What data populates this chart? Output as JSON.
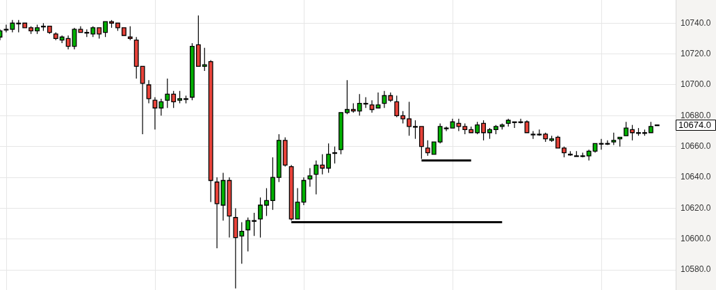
{
  "chart_data": {
    "type": "candlestick",
    "categories": [
      null,
      null,
      null,
      null,
      null,
      null,
      null,
      null,
      null,
      null,
      null,
      null,
      null,
      null,
      null,
      null,
      null,
      null,
      null,
      null,
      null,
      null,
      null,
      null,
      null,
      null,
      null,
      null,
      null,
      null,
      null,
      null,
      null,
      null,
      null,
      null,
      null,
      null,
      null,
      null,
      null,
      null,
      null,
      null,
      null,
      null,
      null,
      null,
      null,
      null,
      null,
      null,
      null,
      null,
      null,
      null,
      null,
      null,
      null,
      null,
      null,
      null,
      null,
      null,
      null,
      null,
      null,
      null,
      null,
      null,
      null,
      null,
      null,
      null,
      null,
      null,
      null,
      null,
      null,
      null,
      null,
      null,
      null,
      null,
      null,
      null,
      null,
      null,
      null,
      null,
      null,
      null,
      null,
      null,
      null,
      null,
      null,
      null,
      null,
      null,
      null,
      null,
      null,
      null,
      null,
      null,
      null
    ],
    "ohlc": [
      [
        10731,
        10736,
        10729,
        10735
      ],
      [
        10736,
        10739,
        10734,
        10736
      ],
      [
        10736,
        10742,
        10734,
        10740
      ],
      [
        10740,
        10742,
        10734,
        10740
      ],
      [
        10740,
        10740,
        10737,
        10737
      ],
      [
        10737,
        10738,
        10733,
        10735
      ],
      [
        10735,
        10739,
        10733,
        10737
      ],
      [
        10738,
        10740,
        10735,
        10738
      ],
      [
        10738,
        10738,
        10733,
        10734
      ],
      [
        10733,
        10734,
        10729,
        10730
      ],
      [
        10729,
        10732,
        10727,
        10731
      ],
      [
        10730,
        10732,
        10723,
        10725
      ],
      [
        10725,
        10737,
        10723,
        10736
      ],
      [
        10736,
        10738,
        10734,
        10734
      ],
      [
        10734,
        10736,
        10731,
        10734
      ],
      [
        10733,
        10738,
        10731,
        10737
      ],
      [
        10737,
        10737,
        10730,
        10733
      ],
      [
        10734,
        10741,
        10731,
        10741
      ],
      [
        10741,
        10742,
        10737,
        10740
      ],
      [
        10740,
        10740,
        10735,
        10737
      ],
      [
        10737,
        10737,
        10732,
        10732
      ],
      [
        10731,
        10738,
        10729,
        10730
      ],
      [
        10729,
        10731,
        10704,
        10712
      ],
      [
        10712,
        10712,
        10668,
        10701
      ],
      [
        10700,
        10703,
        10688,
        10691
      ],
      [
        10690,
        10692,
        10671,
        10685
      ],
      [
        10685,
        10691,
        10680,
        10689
      ],
      [
        10690,
        10704,
        10685,
        10694
      ],
      [
        10694,
        10696,
        10685,
        10689
      ],
      [
        10690,
        10696,
        10688,
        10691
      ],
      [
        10691,
        10693,
        10688,
        10691
      ],
      [
        10692,
        10727,
        10690,
        10725
      ],
      [
        10726,
        10745,
        10712,
        10712
      ],
      [
        10712,
        10724,
        10709,
        10713
      ],
      [
        10715,
        10716,
        10624,
        10638
      ],
      [
        10637,
        10640,
        10594,
        10623
      ],
      [
        10622,
        10643,
        10612,
        10638
      ],
      [
        10638,
        10640,
        10601,
        10615
      ],
      [
        10614,
        10620,
        10568,
        10601
      ],
      [
        10602,
        10611,
        10584,
        10605
      ],
      [
        10606,
        10614,
        10592,
        10612
      ],
      [
        10612,
        10617,
        10602,
        10612
      ],
      [
        10613,
        10627,
        10601,
        10622
      ],
      [
        10622,
        10633,
        10615,
        10625
      ],
      [
        10625,
        10653,
        10619,
        10640
      ],
      [
        10640,
        10668,
        10637,
        10664
      ],
      [
        10664,
        10666,
        10647,
        10648
      ],
      [
        10647,
        10648,
        10612,
        10613
      ],
      [
        10613,
        10633,
        10613,
        10624
      ],
      [
        10624,
        10640,
        10622,
        10638
      ],
      [
        10639,
        10646,
        10634,
        10641
      ],
      [
        10642,
        10651,
        10629,
        10648
      ],
      [
        10648,
        10655,
        10642,
        10646
      ],
      [
        10646,
        10662,
        10643,
        10655
      ],
      [
        10656,
        10660,
        10649,
        10656
      ],
      [
        10658,
        10682,
        10655,
        10682
      ],
      [
        10682,
        10703,
        10681,
        10684
      ],
      [
        10684,
        10688,
        10682,
        10683
      ],
      [
        10683,
        10694,
        10680,
        10688
      ],
      [
        10688,
        10692,
        10685,
        10688
      ],
      [
        10687,
        10690,
        10682,
        10684
      ],
      [
        10685,
        10695,
        10685,
        10687
      ],
      [
        10688,
        10696,
        10685,
        10693
      ],
      [
        10693,
        10695,
        10689,
        10690
      ],
      [
        10689,
        10693,
        10679,
        10680
      ],
      [
        10680,
        10683,
        10675,
        10678
      ],
      [
        10678,
        10689,
        10667,
        10673
      ],
      [
        10673,
        10677,
        10665,
        10673
      ],
      [
        10673,
        10673,
        10652,
        10660
      ],
      [
        10659,
        10664,
        10654,
        10656
      ],
      [
        10655,
        10663,
        10655,
        10663
      ],
      [
        10663,
        10675,
        10662,
        10673
      ],
      [
        10672,
        10673,
        10670,
        10672
      ],
      [
        10672,
        10678,
        10672,
        10676
      ],
      [
        10675,
        10678,
        10670,
        10673
      ],
      [
        10673,
        10675,
        10668,
        10671
      ],
      [
        10671,
        10673,
        10669,
        10669
      ],
      [
        10669,
        10676,
        10668,
        10674
      ],
      [
        10675,
        10677,
        10664,
        10669
      ],
      [
        10669,
        10672,
        10665,
        10671
      ],
      [
        10671,
        10674,
        10668,
        10673
      ],
      [
        10673,
        10675,
        10671,
        10674
      ],
      [
        10675,
        10678,
        10673,
        10677
      ],
      [
        10676,
        10676,
        10672,
        10676
      ],
      [
        10676,
        10678,
        10675,
        10676
      ],
      [
        10676,
        10677,
        10669,
        10669
      ],
      [
        10668,
        10670,
        10665,
        10668
      ],
      [
        10668,
        10671,
        10667,
        10668
      ],
      [
        10668,
        10669,
        10663,
        10665
      ],
      [
        10664,
        10667,
        10663,
        10665
      ],
      [
        10666,
        10667,
        10659,
        10659
      ],
      [
        10659,
        10660,
        10653,
        10656
      ],
      [
        10655,
        10657,
        10654,
        10655
      ],
      [
        10654,
        10657,
        10654,
        10654
      ],
      [
        10654,
        10656,
        10653,
        10654
      ],
      [
        10654,
        10658,
        10651,
        10657
      ],
      [
        10657,
        10662,
        10656,
        10662
      ],
      [
        10662,
        10665,
        10658,
        10662
      ],
      [
        10662,
        10664,
        10661,
        10662
      ],
      [
        10663,
        10669,
        10661,
        10664
      ],
      [
        10665,
        10666,
        10660,
        10666
      ],
      [
        10667,
        10676,
        10667,
        10672
      ],
      [
        10671,
        10674,
        10664,
        10669
      ],
      [
        10669,
        10672,
        10667,
        10669
      ],
      [
        10669,
        10671,
        10667,
        10669
      ],
      [
        10669,
        10676,
        10669,
        10673
      ],
      [
        10674,
        10674,
        10674,
        10674
      ]
    ],
    "colors": [
      "#00b000",
      "#000000",
      "#00b000",
      "#000000",
      "#e8433a",
      "#e8433a",
      "#00b000",
      "#000000",
      "#e8433a",
      "#e8433a",
      "#00b000",
      "#e8433a",
      "#00b000",
      "#e8433a",
      "#000000",
      "#00b000",
      "#e8433a",
      "#00b000",
      "#e8433a",
      "#e8433a",
      "#e8433a",
      "#e8433a",
      "#e8433a",
      "#e8433a",
      "#e8433a",
      "#e8433a",
      "#00b000",
      "#00b000",
      "#e8433a",
      "#00b000",
      "#000000",
      "#00b000",
      "#e8433a",
      "#00b000",
      "#e8433a",
      "#e8433a",
      "#00b000",
      "#e8433a",
      "#e8433a",
      "#00b000",
      "#00b000",
      "#000000",
      "#00b000",
      "#00b000",
      "#00b000",
      "#00b000",
      "#e8433a",
      "#e8433a",
      "#00b000",
      "#00b000",
      "#00b000",
      "#00b000",
      "#e8433a",
      "#00b000",
      "#000000",
      "#00b000",
      "#00b000",
      "#e8433a",
      "#00b000",
      "#000000",
      "#e8433a",
      "#00b000",
      "#00b000",
      "#e8433a",
      "#e8433a",
      "#e8433a",
      "#e8433a",
      "#000000",
      "#e8433a",
      "#e8433a",
      "#00b000",
      "#00b000",
      "#000000",
      "#00b000",
      "#e8433a",
      "#e8433a",
      "#e8433a",
      "#00b000",
      "#e8433a",
      "#00b000",
      "#00b000",
      "#00b000",
      "#00b000",
      "#000000",
      "#000000",
      "#e8433a",
      "#000000",
      "#000000",
      "#e8433a",
      "#00b000",
      "#e8433a",
      "#e8433a",
      "#000000",
      "#000000",
      "#000000",
      "#00b000",
      "#00b000",
      "#000000",
      "#000000",
      "#00b000",
      "#00b000",
      "#00b000",
      "#e8433a",
      "#000000",
      "#000000",
      "#00b000",
      "#000000"
    ],
    "series": [
      {
        "type": "line",
        "color": "#000000",
        "values": [
          null,
          null,
          null,
          null,
          null,
          null,
          null,
          null,
          null,
          null,
          null,
          null,
          null,
          null,
          null,
          null,
          null,
          null,
          null,
          null,
          null,
          null,
          null,
          null,
          null,
          null,
          null,
          null,
          null,
          null,
          null,
          null,
          null,
          null,
          null,
          null,
          null,
          null,
          null,
          null,
          null,
          null,
          null,
          null,
          null,
          null,
          null,
          10611,
          10611,
          10611,
          10611,
          10611,
          10611,
          10611,
          10611,
          10611,
          10611,
          10611,
          10611,
          10611,
          10611,
          10611,
          10611,
          10611,
          10611,
          10611,
          10611,
          10611,
          10611,
          10611,
          10611,
          10611,
          10611,
          10611,
          10611,
          10611,
          10611,
          10611,
          10611,
          10611,
          10611,
          10611,
          null,
          null,
          null,
          null,
          null,
          null,
          null,
          null,
          null,
          null,
          null,
          null,
          null,
          null,
          null,
          null,
          null,
          null,
          null,
          null,
          null,
          null,
          null,
          null,
          null
        ]
      },
      {
        "type": "line",
        "color": "#000000",
        "values": [
          null,
          null,
          null,
          null,
          null,
          null,
          null,
          null,
          null,
          null,
          null,
          null,
          null,
          null,
          null,
          null,
          null,
          null,
          null,
          null,
          null,
          null,
          null,
          null,
          null,
          null,
          null,
          null,
          null,
          null,
          null,
          null,
          null,
          null,
          null,
          null,
          null,
          null,
          null,
          null,
          null,
          null,
          null,
          null,
          null,
          null,
          null,
          null,
          null,
          null,
          null,
          null,
          null,
          null,
          null,
          null,
          null,
          null,
          null,
          null,
          null,
          null,
          null,
          null,
          null,
          null,
          null,
          null,
          10651,
          10651,
          10651,
          10651,
          10651,
          10651,
          10651,
          10651,
          10651,
          null,
          null,
          null,
          null,
          null,
          null,
          null,
          null,
          null,
          null,
          null,
          null,
          null,
          null,
          null,
          null,
          null,
          null,
          null,
          null,
          null,
          null,
          null,
          null,
          null,
          null,
          null,
          null,
          null,
          null
        ]
      }
    ],
    "ylim": [
      10567,
      10755
    ],
    "yticks": [
      {
        "value": 10580,
        "label": "10580.0"
      },
      {
        "value": 10600,
        "label": "10600.0"
      },
      {
        "value": 10620,
        "label": "10620.0"
      },
      {
        "value": 10640,
        "label": "10640.0"
      },
      {
        "value": 10660,
        "label": "10660.0"
      },
      {
        "value": 10680,
        "label": "10680.0"
      },
      {
        "value": 10700,
        "label": "10700.0"
      },
      {
        "value": 10720,
        "label": "10720.0"
      },
      {
        "value": 10740,
        "label": "10740.0"
      }
    ],
    "annotations": [
      "10674.0"
    ],
    "grid": true,
    "tick_labels": "y"
  }
}
